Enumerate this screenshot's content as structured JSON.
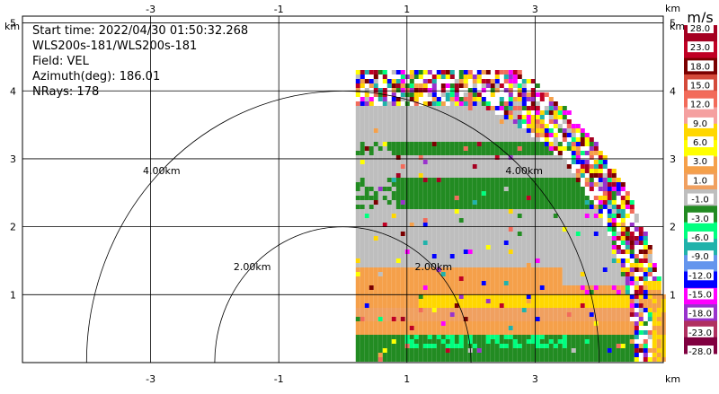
{
  "chart_data": {
    "type": "heatmap",
    "field": "VEL",
    "info_lines": [
      "Start time: 2022/04/30 01:50:32.268",
      "WLS200s-181/WLS200s-181",
      "Field: VEL",
      "Azimuth(deg): 186.01",
      "NRays: 178"
    ],
    "x_axis": {
      "unit_label": "km",
      "ticks": [
        -3,
        -1,
        1,
        3
      ],
      "tick_labels": [
        "-3",
        "-1",
        "1",
        "3"
      ],
      "range": [
        -5,
        5
      ]
    },
    "y_axis": {
      "unit_label": "km",
      "ticks": [
        1,
        2,
        3,
        4,
        5
      ],
      "tick_labels": [
        "1",
        "2",
        "3",
        "4",
        "5"
      ],
      "range": [
        0,
        5.1
      ]
    },
    "range_rings": [
      {
        "radius_km": 2,
        "label": "2.00km"
      },
      {
        "radius_km": 4,
        "label": "4.00km"
      }
    ],
    "grid": true,
    "sector": {
      "x_start_km": 0.2,
      "max_range_km": 5.1,
      "elevation_deg_min": 0,
      "elevation_deg_max": 90
    },
    "bands": [
      {
        "from_h": 0.0,
        "to_h": 0.42,
        "class": 4
      },
      {
        "from_h": 0.42,
        "to_h": 0.62,
        "class": 6
      },
      {
        "from_h": 0.62,
        "to_h": 0.78,
        "class": 3
      },
      {
        "from_h": 0.78,
        "to_h": 0.98,
        "class": 9
      },
      {
        "from_h": 0.98,
        "to_h": 1.12,
        "class": 7
      },
      {
        "from_h": 1.12,
        "to_h": 1.42,
        "class": 6
      },
      {
        "from_h": 1.42,
        "to_h": 2.28,
        "class": 5
      },
      {
        "from_h": 2.28,
        "to_h": 2.72,
        "class": 4
      },
      {
        "from_h": 2.72,
        "to_h": 3.08,
        "class": 5
      },
      {
        "from_h": 3.08,
        "to_h": 3.22,
        "class": 4
      },
      {
        "from_h": 3.22,
        "to_h": 3.75,
        "class": 5
      }
    ],
    "colorbar": {
      "unit": "m/s",
      "tick_labels": [
        "28.0",
        "23.0",
        "18.0",
        "15.0",
        "12.0",
        "9.0",
        "6.0",
        "3.0",
        "1.0",
        "-1.0",
        "-3.0",
        "-6.0",
        "-9.0",
        "-12.0",
        "-15.0",
        "-18.0",
        "-23.0",
        "-28.0"
      ],
      "colors": [
        "#a50021",
        "#c00024",
        "#7a0000",
        "#d44a3a",
        "#f26b5a",
        "#f5a0a0",
        "#ffd700",
        "#ffff00",
        "#f5a04a",
        "#f0a060",
        "#bebebe",
        "#228b22",
        "#00ff7f",
        "#20b2aa",
        "#6495ed",
        "#0000ff",
        "#ff00ff",
        "#9932cc",
        "#b03060",
        "#800040"
      ]
    }
  }
}
